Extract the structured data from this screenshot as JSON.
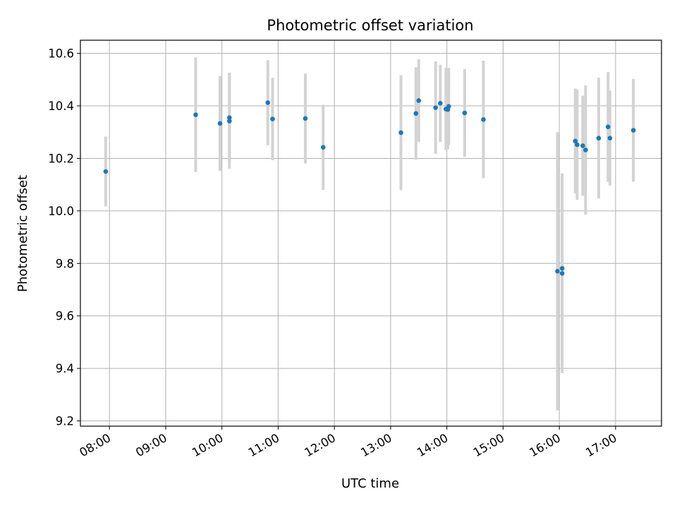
{
  "chart_data": {
    "type": "scatter",
    "title": "Photometric offset variation",
    "xlabel": "UTC time",
    "ylabel": "Photometric offset",
    "x_ticks": [
      "08:00",
      "09:00",
      "10:00",
      "11:00",
      "12:00",
      "13:00",
      "14:00",
      "15:00",
      "16:00",
      "17:00"
    ],
    "y_ticks": [
      "9.2",
      "9.4",
      "9.6",
      "9.8",
      "10.0",
      "10.2",
      "10.4",
      "10.6"
    ],
    "xlim": [
      "07:29",
      "17:49"
    ],
    "ylim": [
      9.18,
      10.65
    ],
    "grid": true,
    "series": [
      {
        "marker_color": "#1f77b4",
        "errorbar_color": "#d3d3d3",
        "points": [
          {
            "x": "07:56",
            "y": 10.15,
            "yerr": 0.133
          },
          {
            "x": "09:32",
            "y": 10.366,
            "yerr": 0.218
          },
          {
            "x": "09:58",
            "y": 10.333,
            "yerr": 0.181
          },
          {
            "x": "10:08",
            "y": 10.342,
            "yerr": 0.181
          },
          {
            "x": "10:08",
            "y": 10.355,
            "yerr": 0.171
          },
          {
            "x": "10:49",
            "y": 10.412,
            "yerr": 0.162
          },
          {
            "x": "10:54",
            "y": 10.35,
            "yerr": 0.157
          },
          {
            "x": "11:29",
            "y": 10.352,
            "yerr": 0.171
          },
          {
            "x": "11:48",
            "y": 10.242,
            "yerr": 0.162
          },
          {
            "x": "13:11",
            "y": 10.298,
            "yerr": 0.219
          },
          {
            "x": "13:27",
            "y": 10.371,
            "yerr": 0.176
          },
          {
            "x": "13:30",
            "y": 10.42,
            "yerr": 0.157
          },
          {
            "x": "13:48",
            "y": 10.393,
            "yerr": 0.176
          },
          {
            "x": "13:53",
            "y": 10.41,
            "yerr": 0.147
          },
          {
            "x": "13:59",
            "y": 10.388,
            "yerr": 0.157
          },
          {
            "x": "14:01",
            "y": 10.386,
            "yerr": 0.152
          },
          {
            "x": "14:02",
            "y": 10.398,
            "yerr": 0.147
          },
          {
            "x": "14:19",
            "y": 10.373,
            "yerr": 0.167
          },
          {
            "x": "14:39",
            "y": 10.348,
            "yerr": 0.224
          },
          {
            "x": "15:58",
            "y": 9.77,
            "yerr": 0.53
          },
          {
            "x": "16:03",
            "y": 9.762,
            "yerr": 0.38
          },
          {
            "x": "16:03",
            "y": 9.781,
            "yerr": 0.362
          },
          {
            "x": "16:17",
            "y": 10.266,
            "yerr": 0.2
          },
          {
            "x": "16:19",
            "y": 10.252,
            "yerr": 0.21
          },
          {
            "x": "16:25",
            "y": 10.248,
            "yerr": 0.191
          },
          {
            "x": "16:28",
            "y": 10.232,
            "yerr": 0.246
          },
          {
            "x": "16:42",
            "y": 10.277,
            "yerr": 0.23
          },
          {
            "x": "16:52",
            "y": 10.32,
            "yerr": 0.209
          },
          {
            "x": "16:54",
            "y": 10.277,
            "yerr": 0.181
          },
          {
            "x": "17:19",
            "y": 10.307,
            "yerr": 0.196
          }
        ]
      }
    ]
  }
}
